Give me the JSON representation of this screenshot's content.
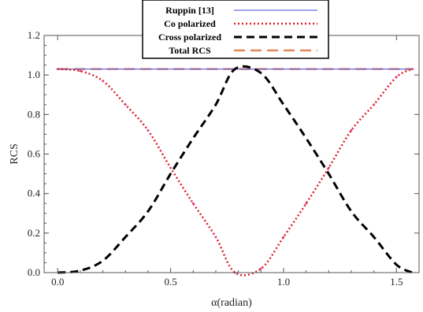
{
  "chart_data": {
    "type": "line",
    "xlabel": "α(radian)",
    "ylabel": "RCS",
    "xlim": [
      -0.06,
      1.6
    ],
    "ylim": [
      0,
      1.2
    ],
    "x_ticks": [
      "0.0",
      "0.5",
      "1.0",
      "1.5"
    ],
    "x_tick_values": [
      0,
      0.5,
      1.0,
      1.5
    ],
    "y_ticks": [
      "0.0",
      "0.2",
      "0.4",
      "0.6",
      "0.8",
      "1.0",
      "1.2"
    ],
    "y_tick_values": [
      0,
      0.2,
      0.4,
      0.6,
      0.8,
      1.0,
      1.2
    ],
    "grid": false,
    "legend_position": "top-center",
    "x": [
      0.0,
      0.1,
      0.2,
      0.3,
      0.4,
      0.5,
      0.6,
      0.7,
      0.785,
      0.9,
      1.0,
      1.1,
      1.2,
      1.3,
      1.4,
      1.5,
      1.571
    ],
    "series": [
      {
        "name": "Ruppin [13]",
        "color": "#6a6ae0",
        "style": "solid",
        "values": [
          1.03,
          1.03,
          1.03,
          1.03,
          1.03,
          1.03,
          1.03,
          1.03,
          1.03,
          1.03,
          1.03,
          1.03,
          1.03,
          1.03,
          1.03,
          1.03,
          1.03
        ]
      },
      {
        "name": "Co polarized",
        "color": "#e0202a",
        "style": "dotted",
        "values": [
          1.03,
          1.02,
          0.97,
          0.85,
          0.72,
          0.53,
          0.35,
          0.18,
          0.0,
          0.02,
          0.18,
          0.35,
          0.53,
          0.72,
          0.85,
          0.99,
          1.03
        ]
      },
      {
        "name": "Cross polarized",
        "color": "#000000",
        "style": "dashed",
        "values": [
          0.0,
          0.01,
          0.06,
          0.18,
          0.31,
          0.5,
          0.68,
          0.85,
          1.03,
          1.01,
          0.85,
          0.68,
          0.5,
          0.31,
          0.18,
          0.04,
          0.0
        ]
      },
      {
        "name": "Total RCS",
        "color": "#e08a5a",
        "style": "longdash",
        "values": [
          1.03,
          1.03,
          1.03,
          1.03,
          1.03,
          1.03,
          1.03,
          1.03,
          1.03,
          1.03,
          1.03,
          1.03,
          1.03,
          1.03,
          1.03,
          1.03,
          1.03
        ]
      }
    ]
  }
}
